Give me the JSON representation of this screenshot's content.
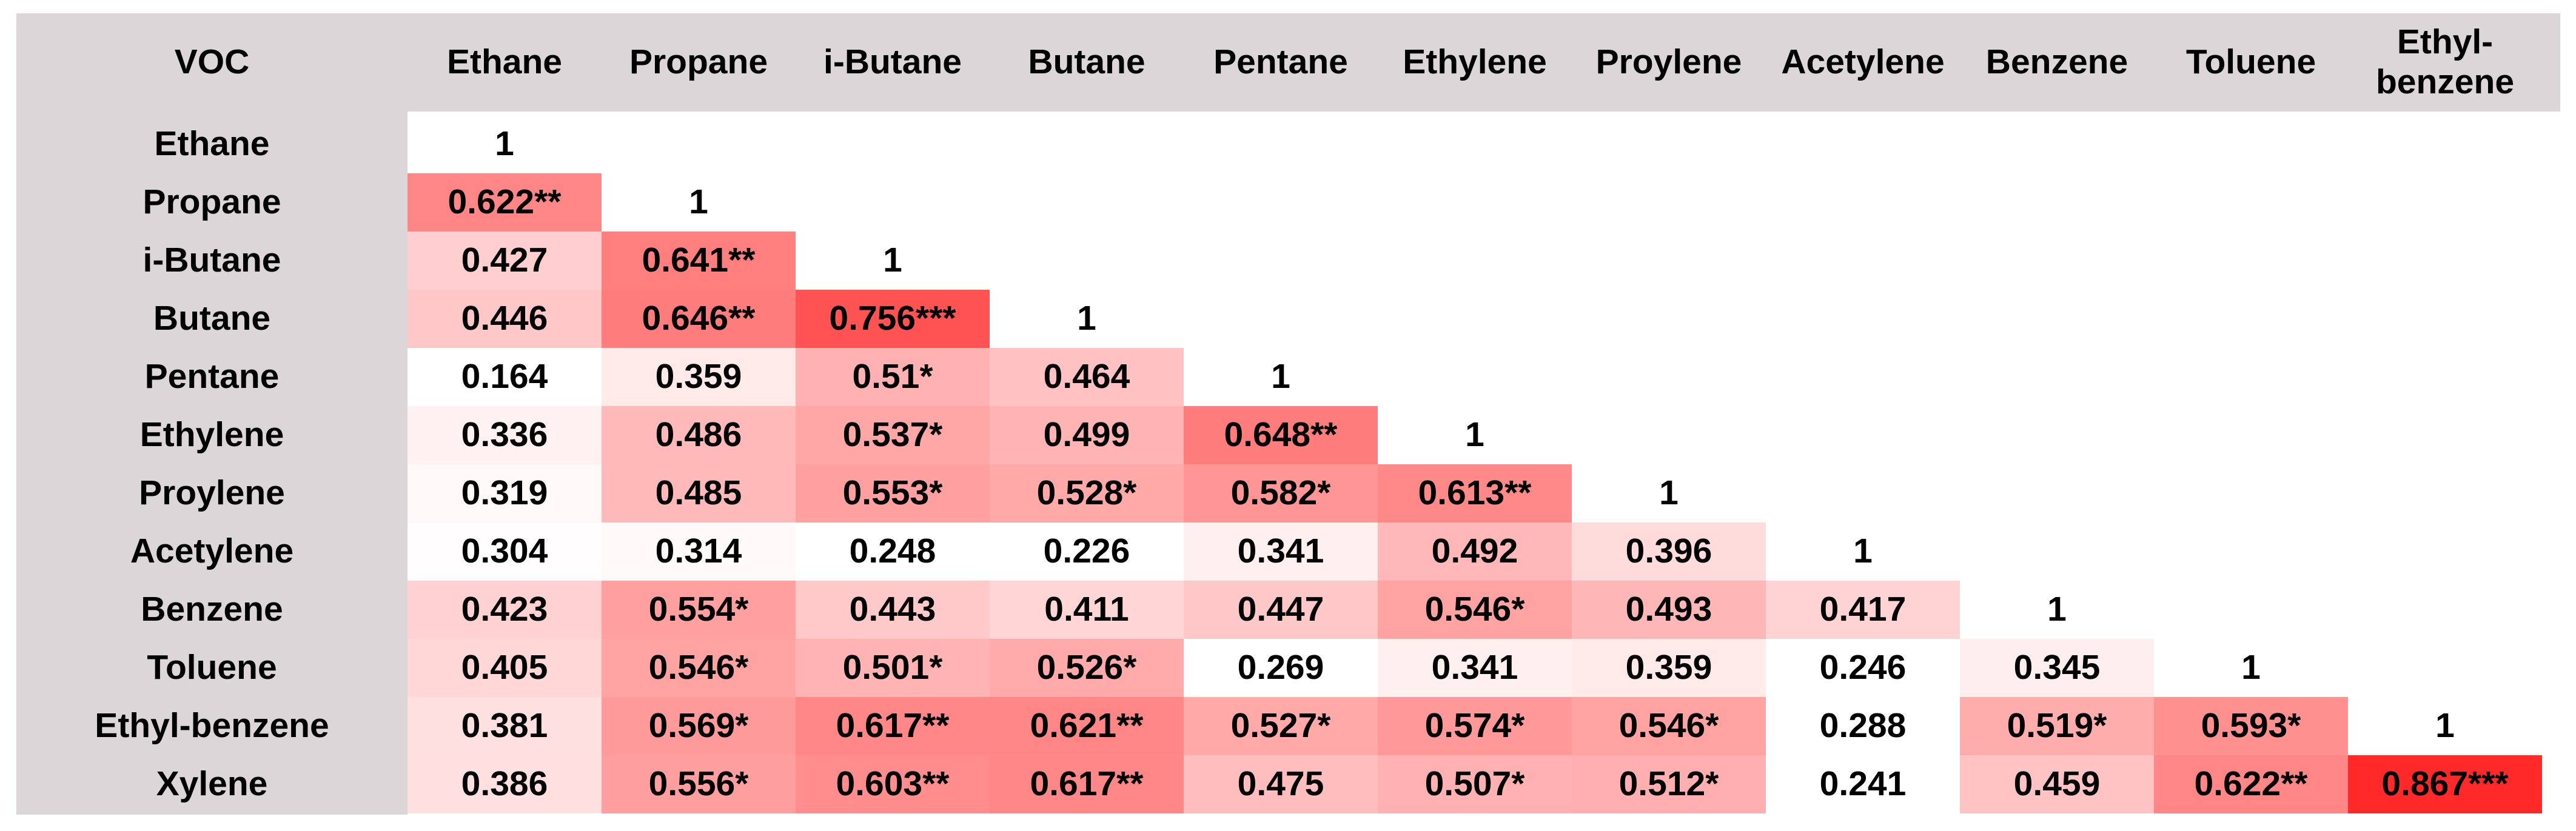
{
  "table": {
    "header": [
      "VOC",
      "Ethane",
      "Propane",
      "i-Butane",
      "Butane",
      "Pentane",
      "Ethylene",
      "Proylene",
      "Acetylene",
      "Benzene",
      "Toluene",
      "Ethyl-benzene"
    ],
    "rows": [
      {
        "label": "Ethane",
        "cells": [
          "1"
        ]
      },
      {
        "label": "Propane",
        "cells": [
          "0.622**",
          "1"
        ]
      },
      {
        "label": "i-Butane",
        "cells": [
          "0.427",
          "0.641**",
          "1"
        ]
      },
      {
        "label": "Butane",
        "cells": [
          "0.446",
          "0.646**",
          "0.756***",
          "1"
        ]
      },
      {
        "label": "Pentane",
        "cells": [
          "0.164",
          "0.359",
          "0.51*",
          "0.464",
          "1"
        ]
      },
      {
        "label": "Ethylene",
        "cells": [
          "0.336",
          "0.486",
          "0.537*",
          "0.499",
          "0.648**",
          "1"
        ]
      },
      {
        "label": "Proylene",
        "cells": [
          "0.319",
          "0.485",
          "0.553*",
          "0.528*",
          "0.582*",
          "0.613**",
          "1"
        ]
      },
      {
        "label": "Acetylene",
        "cells": [
          "0.304",
          "0.314",
          "0.248",
          "0.226",
          "0.341",
          "0.492",
          "0.396",
          "1"
        ]
      },
      {
        "label": "Benzene",
        "cells": [
          "0.423",
          "0.554*",
          "0.443",
          "0.411",
          "0.447",
          "0.546*",
          "0.493",
          "0.417",
          "1"
        ]
      },
      {
        "label": "Toluene",
        "cells": [
          "0.405",
          "0.546*",
          "0.501*",
          "0.526*",
          "0.269",
          "0.341",
          "0.359",
          "0.246",
          "0.345",
          "1"
        ]
      },
      {
        "label": "Ethyl-benzene",
        "cells": [
          "0.381",
          "0.569*",
          "0.617**",
          "0.621**",
          "0.527*",
          "0.574*",
          "0.546*",
          "0.288",
          "0.519*",
          "0.593*",
          "1"
        ]
      },
      {
        "label": "Xylene",
        "cells": [
          "0.386",
          "0.556*",
          "0.603**",
          "0.617**",
          "0.475",
          "0.507*",
          "0.512*",
          "0.241",
          "0.459",
          "0.622**",
          "0.867***"
        ]
      }
    ]
  }
}
